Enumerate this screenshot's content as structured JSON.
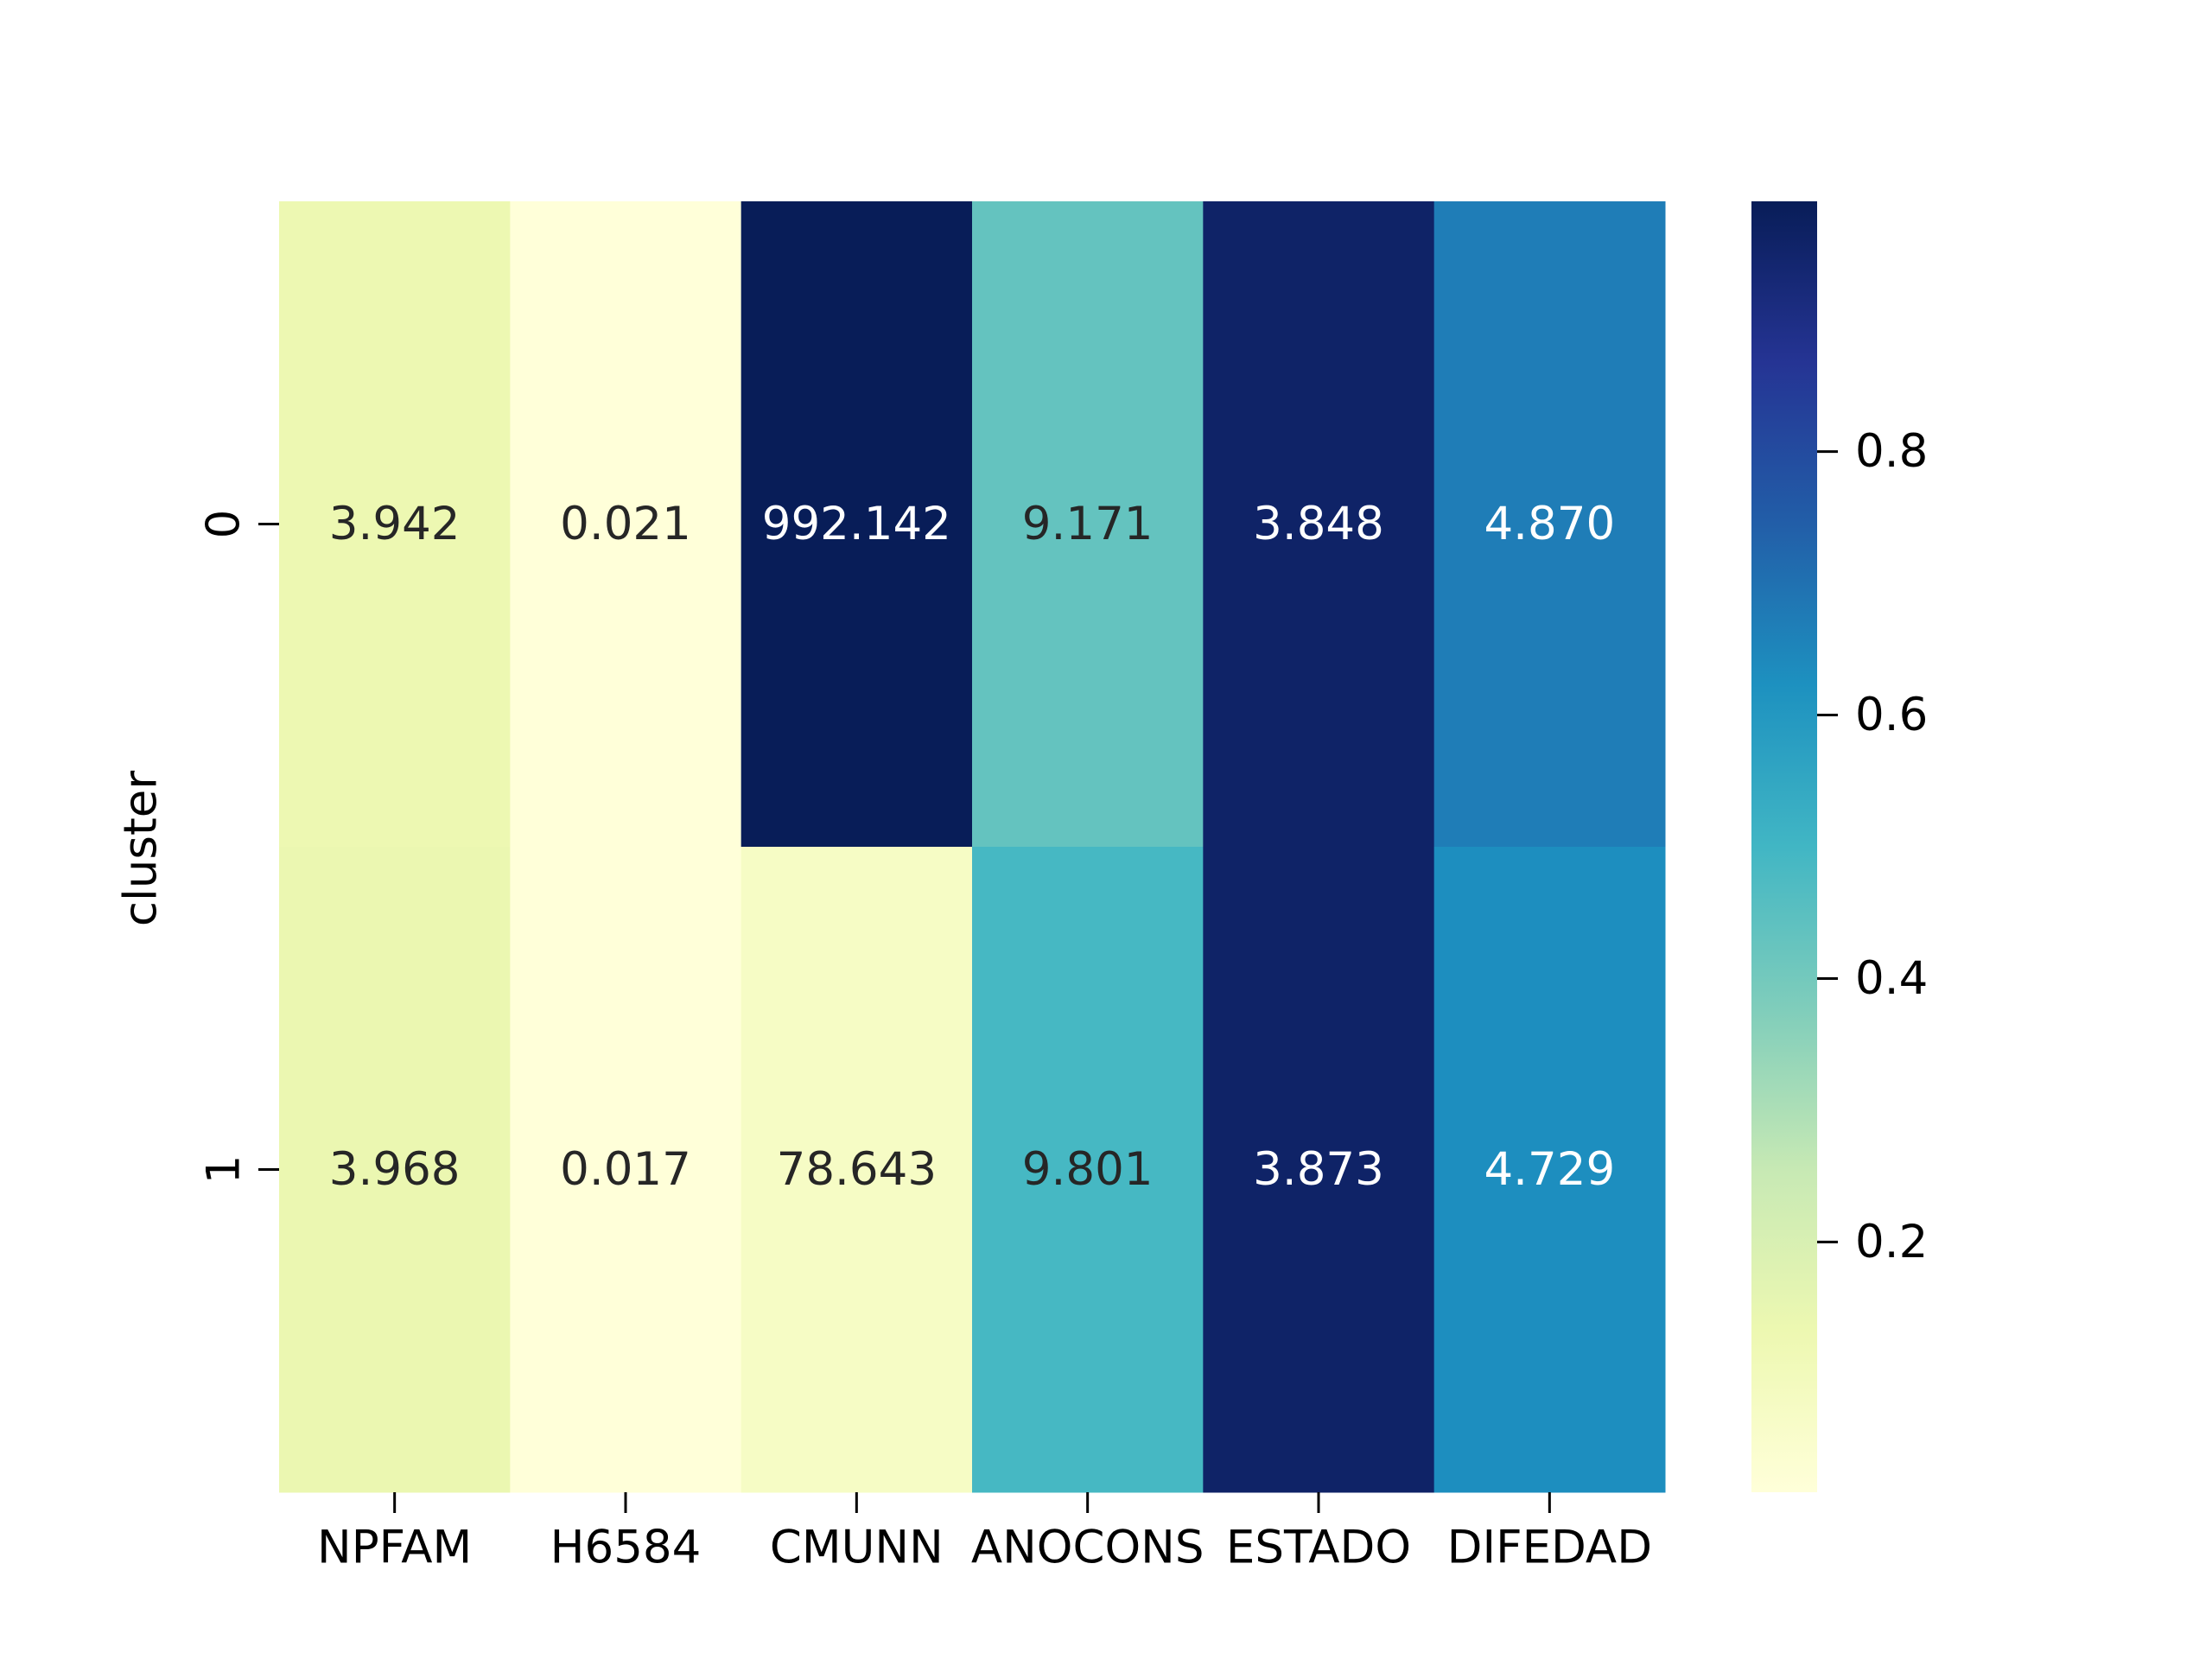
{
  "chart_data": {
    "type": "heatmap",
    "title": "",
    "xlabel": "",
    "ylabel": "cluster",
    "columns": [
      "NPFAM",
      "H6584",
      "CMUNN",
      "ANOCONS",
      "ESTADO",
      "DIFEDAD"
    ],
    "rows": [
      "0",
      "1"
    ],
    "values": [
      [
        "3.942",
        "0.021",
        "992.142",
        "9.171",
        "3.848",
        "4.870"
      ],
      [
        "3.968",
        "0.017",
        "78.643",
        "9.801",
        "3.873",
        "4.729"
      ]
    ],
    "normalized_values": [
      [
        0.13,
        0.01,
        0.99,
        0.43,
        0.96,
        0.67
      ],
      [
        0.14,
        0.01,
        0.07,
        0.49,
        0.96,
        0.63
      ]
    ],
    "colormap": "YlGnBu",
    "colorbar": {
      "range": [
        0.01,
        0.99
      ],
      "ticks": [
        "0.2",
        "0.4",
        "0.6",
        "0.8"
      ],
      "tick_values": [
        0.2,
        0.4,
        0.6,
        0.8
      ],
      "placement": "right"
    },
    "grid": false,
    "legend": "none"
  }
}
